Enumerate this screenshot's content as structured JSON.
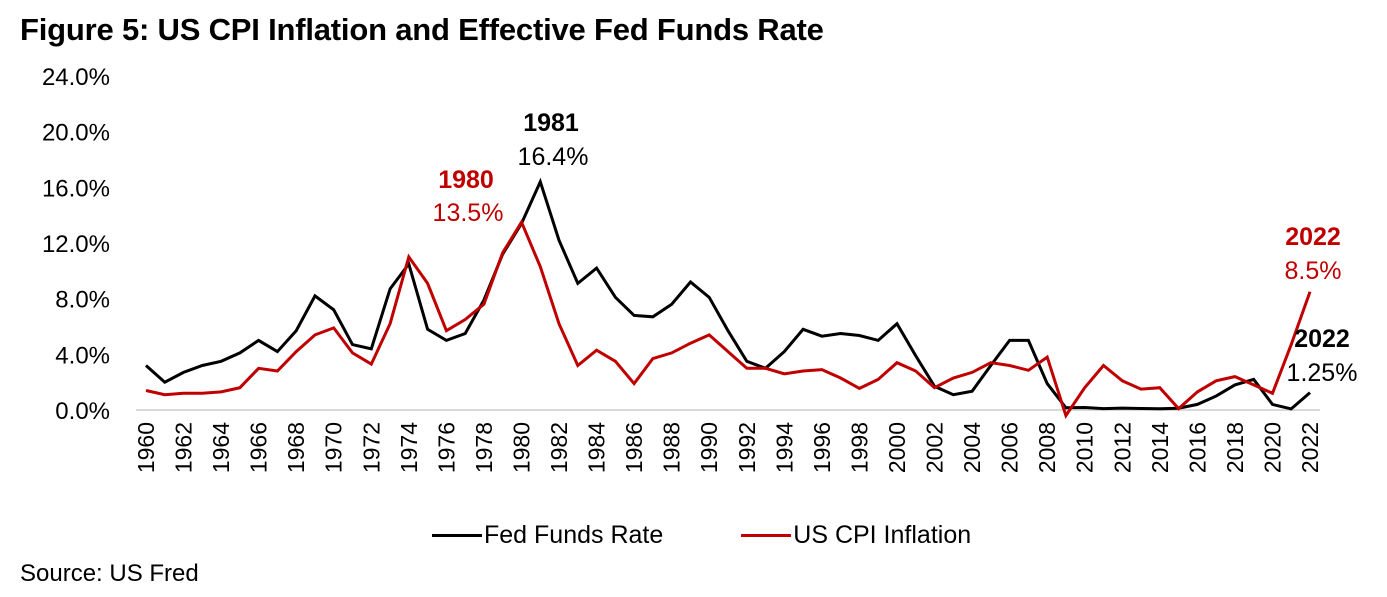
{
  "title": "Figure 5: US CPI Inflation and Effective Fed Funds Rate",
  "source": "Source: US Fred",
  "colors": {
    "fed": "#000000",
    "cpi": "#C00000",
    "axis": "#D9D9D9"
  },
  "chart_data": {
    "type": "line",
    "title": "Figure 5: US CPI Inflation and Effective Fed Funds Rate",
    "xlabel": "",
    "ylabel": "",
    "ylim": [
      0,
      24
    ],
    "yticks": [
      0,
      4,
      8,
      12,
      16,
      20,
      24
    ],
    "ytick_labels": [
      "0.0%",
      "4.0%",
      "8.0%",
      "12.0%",
      "16.0%",
      "20.0%",
      "24.0%"
    ],
    "x": [
      1960,
      1961,
      1962,
      1963,
      1964,
      1965,
      1966,
      1967,
      1968,
      1969,
      1970,
      1971,
      1972,
      1973,
      1974,
      1975,
      1976,
      1977,
      1978,
      1979,
      1980,
      1981,
      1982,
      1983,
      1984,
      1985,
      1986,
      1987,
      1988,
      1989,
      1990,
      1991,
      1992,
      1993,
      1994,
      1995,
      1996,
      1997,
      1998,
      1999,
      2000,
      2001,
      2002,
      2003,
      2004,
      2005,
      2006,
      2007,
      2008,
      2009,
      2010,
      2011,
      2012,
      2013,
      2014,
      2015,
      2016,
      2017,
      2018,
      2019,
      2020,
      2021,
      2022
    ],
    "xtick_labels": [
      "1960",
      "1962",
      "1964",
      "1966",
      "1968",
      "1970",
      "1972",
      "1974",
      "1976",
      "1978",
      "1980",
      "1982",
      "1984",
      "1986",
      "1988",
      "1990",
      "1992",
      "1994",
      "1996",
      "1998",
      "2000",
      "2002",
      "2004",
      "2006",
      "2008",
      "2010",
      "2012",
      "2014",
      "2016",
      "2018",
      "2020",
      "2022"
    ],
    "grid": false,
    "legend_position": "bottom-center",
    "series": [
      {
        "name": "Fed Funds Rate",
        "color": "#000000",
        "values": [
          3.2,
          2.0,
          2.7,
          3.2,
          3.5,
          4.1,
          5.0,
          4.2,
          5.7,
          8.2,
          7.2,
          4.7,
          4.4,
          8.7,
          10.5,
          5.8,
          5.0,
          5.5,
          7.9,
          11.2,
          13.4,
          16.4,
          12.2,
          9.1,
          10.2,
          8.1,
          6.8,
          6.7,
          7.6,
          9.2,
          8.1,
          5.7,
          3.5,
          3.0,
          4.2,
          5.8,
          5.3,
          5.5,
          5.35,
          5.0,
          6.2,
          3.9,
          1.7,
          1.1,
          1.35,
          3.2,
          5.0,
          5.0,
          1.9,
          0.16,
          0.18,
          0.1,
          0.14,
          0.11,
          0.09,
          0.13,
          0.4,
          1.0,
          1.8,
          2.2,
          0.4,
          0.08,
          1.25
        ]
      },
      {
        "name": "US CPI Inflation",
        "color": "#C00000",
        "values": [
          1.4,
          1.1,
          1.2,
          1.2,
          1.3,
          1.6,
          3.0,
          2.8,
          4.2,
          5.4,
          5.9,
          4.1,
          3.3,
          6.2,
          11.0,
          9.1,
          5.7,
          6.5,
          7.6,
          11.3,
          13.5,
          10.3,
          6.2,
          3.2,
          4.3,
          3.5,
          1.9,
          3.7,
          4.1,
          4.8,
          5.4,
          4.2,
          3.0,
          3.0,
          2.6,
          2.8,
          2.9,
          2.3,
          1.55,
          2.2,
          3.4,
          2.8,
          1.6,
          2.3,
          2.7,
          3.4,
          3.2,
          2.85,
          3.8,
          -0.4,
          1.6,
          3.2,
          2.1,
          1.5,
          1.6,
          0.1,
          1.3,
          2.1,
          2.4,
          1.8,
          1.2,
          4.7,
          8.5
        ]
      }
    ],
    "annotations": [
      {
        "id": "fed-1981",
        "series": "Fed Funds Rate",
        "year_label": "1981",
        "value_label": "16.4%"
      },
      {
        "id": "cpi-1980",
        "series": "US CPI Inflation",
        "year_label": "1980",
        "value_label": "13.5%"
      },
      {
        "id": "cpi-2022",
        "series": "US CPI Inflation",
        "year_label": "2022",
        "value_label": "8.5%"
      },
      {
        "id": "fed-2022",
        "series": "Fed Funds Rate",
        "year_label": "2022",
        "value_label": "1.25%"
      }
    ]
  },
  "legend": [
    {
      "label": "Fed Funds Rate",
      "color": "#000000"
    },
    {
      "label": "US CPI Inflation",
      "color": "#C00000"
    }
  ]
}
